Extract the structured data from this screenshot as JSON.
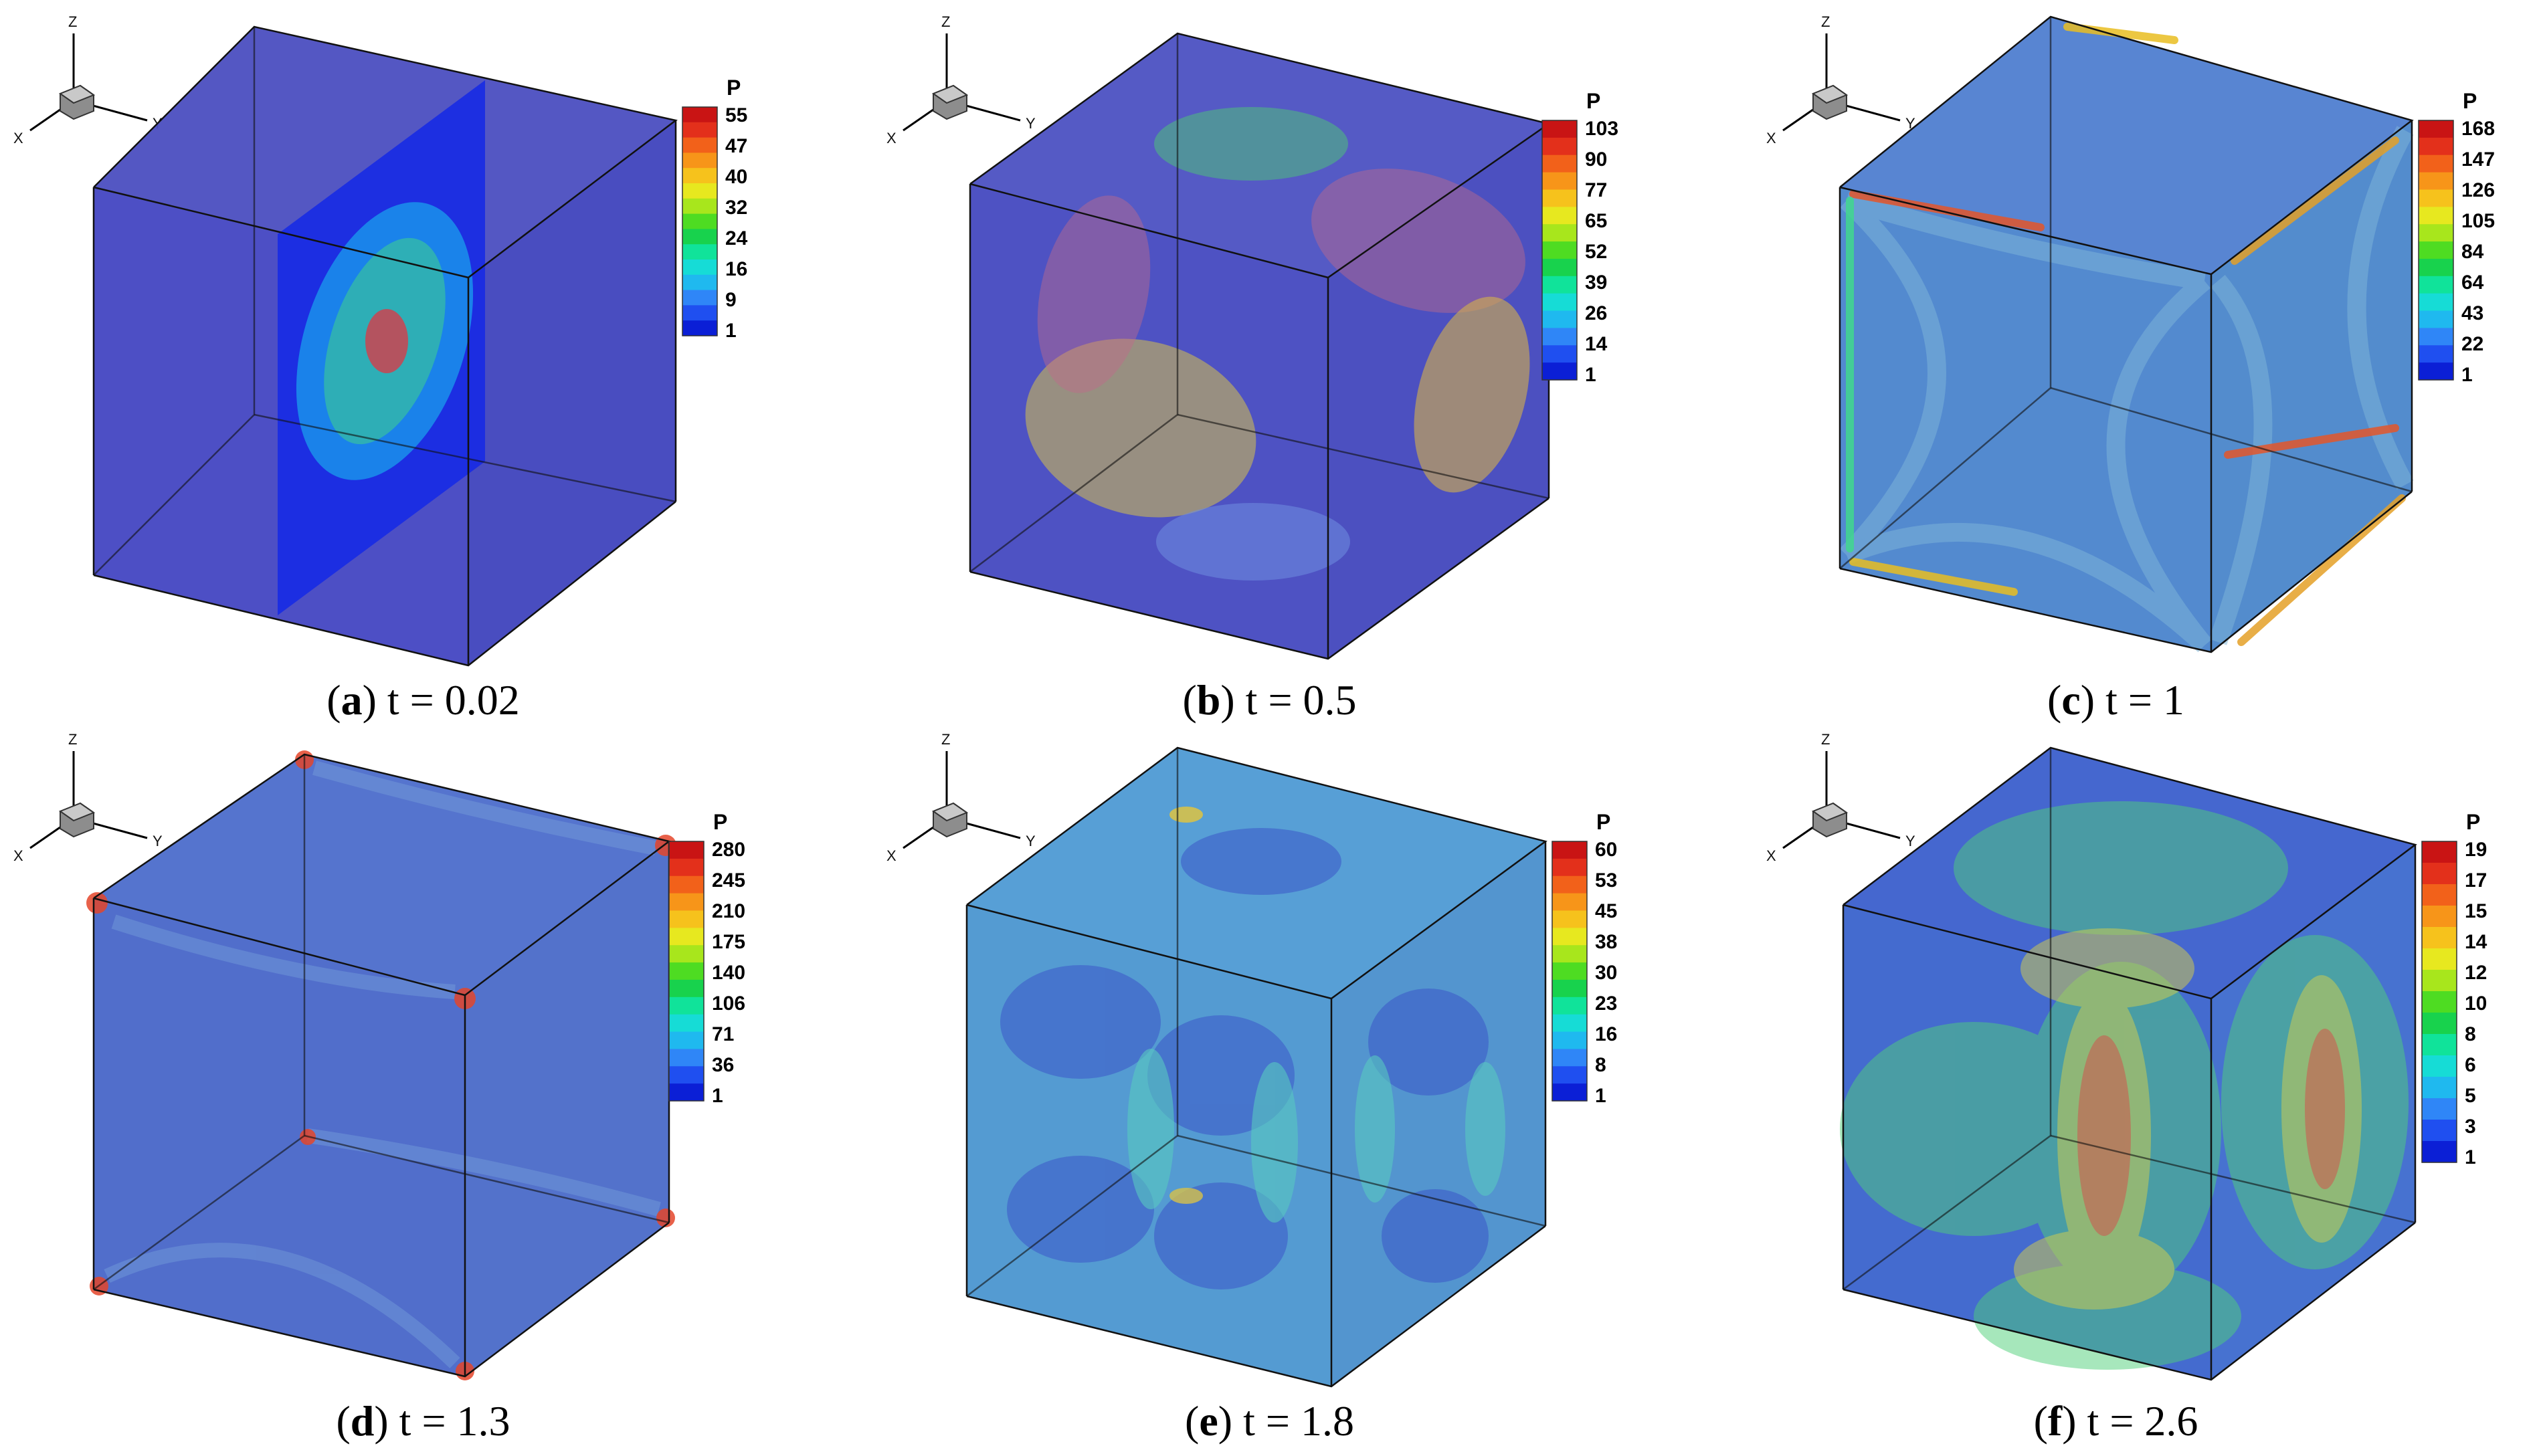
{
  "colormap": [
    "#0b1fd6",
    "#1f4ff0",
    "#2f86f7",
    "#1fb9ef",
    "#16dcd6",
    "#10e39a",
    "#18d24d",
    "#4edc22",
    "#a8e61c",
    "#e7e81f",
    "#f6c21c",
    "#f79519",
    "#f2611a",
    "#e3301b",
    "#c91414"
  ],
  "panels": [
    {
      "id": "a",
      "caption_letter": "a",
      "caption_rest": " t = 0.02",
      "legend": {
        "title": "P",
        "labels": [
          "55",
          "47",
          "40",
          "32",
          "24",
          "16",
          "9",
          "1"
        ]
      },
      "axes": {
        "z": "Z",
        "y": "Y",
        "x": "X"
      },
      "face_colors": {
        "top": "#4b4ec0",
        "front": "#4346c2",
        "side": "#3f43bd"
      }
    },
    {
      "id": "b",
      "caption_letter": "b",
      "caption_rest": " t = 0.5",
      "legend": {
        "title": "P",
        "labels": [
          "103",
          "90",
          "77",
          "65",
          "52",
          "39",
          "26",
          "14",
          "1"
        ]
      },
      "axes": {
        "z": "Z",
        "y": "Y",
        "x": "X"
      },
      "face_colors": {
        "top": "#4c51c2",
        "front": "#4549c0",
        "side": "#4247bd"
      }
    },
    {
      "id": "c",
      "caption_letter": "c",
      "caption_rest": " t = 1",
      "legend": {
        "title": "P",
        "labels": [
          "168",
          "147",
          "126",
          "105",
          "84",
          "64",
          "43",
          "22",
          "1"
        ]
      },
      "axes": {
        "z": "Z",
        "y": "Y",
        "x": "X"
      },
      "face_colors": {
        "top": "#4f7ed0",
        "front": "#4a84cc",
        "side": "#4a86ca"
      }
    },
    {
      "id": "d",
      "caption_letter": "d",
      "caption_rest": " t = 1.3",
      "legend": {
        "title": "P",
        "labels": [
          "280",
          "245",
          "210",
          "175",
          "140",
          "106",
          "71",
          "36",
          "1"
        ]
      },
      "axes": {
        "z": "Z",
        "y": "Y",
        "x": "X"
      },
      "face_colors": {
        "top": "#4c6dcb",
        "front": "#4866c8",
        "side": "#4a6ac8"
      }
    },
    {
      "id": "e",
      "caption_letter": "e",
      "caption_rest": " t = 1.8",
      "legend": {
        "title": "P",
        "labels": [
          "60",
          "53",
          "45",
          "38",
          "30",
          "23",
          "16",
          "8",
          "1"
        ]
      },
      "axes": {
        "z": "Z",
        "y": "Y",
        "x": "X"
      },
      "face_colors": {
        "top": "#4e9ad4",
        "front": "#4b96d0",
        "side": "#4a8fcc"
      }
    },
    {
      "id": "f",
      "caption_letter": "f",
      "caption_rest": " t = 2.6",
      "legend": {
        "title": "P",
        "labels": [
          "19",
          "17",
          "15",
          "14",
          "12",
          "10",
          "8",
          "6",
          "5",
          "3",
          "1"
        ]
      },
      "axes": {
        "z": "Z",
        "y": "Y",
        "x": "X"
      },
      "face_colors": {
        "top": "#3b5fcc",
        "front": "#3a63cc",
        "side": "#3d6acd"
      }
    }
  ]
}
